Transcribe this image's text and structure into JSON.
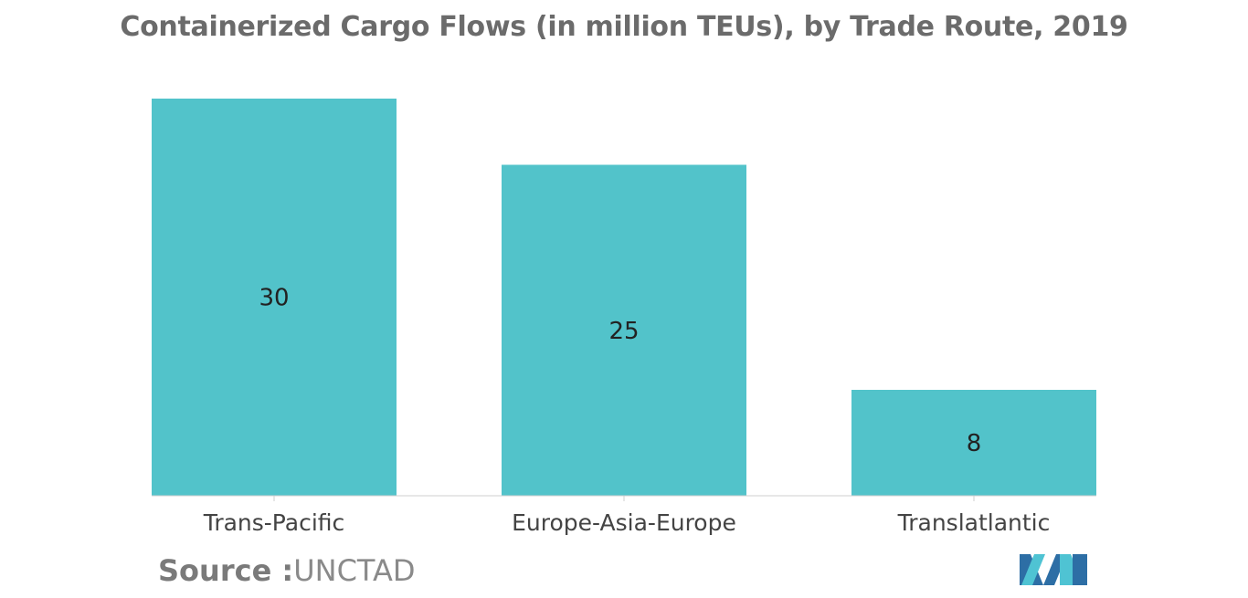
{
  "title": "Containerized Cargo Flows (in million TEUs), by Trade Route, 2019",
  "source": {
    "label": "Source :",
    "value": "UNCTAD"
  },
  "logo": {
    "icon": "mordor-intelligence-logo-icon"
  },
  "colors": {
    "bar": "#52c3ca",
    "axis": "#cfcfcf",
    "text": "#222222",
    "label": "#444444"
  },
  "chart_data": {
    "type": "bar",
    "title": "Containerized Cargo Flows (in million TEUs), by Trade Route, 2019",
    "categories": [
      "Trans-Pacific",
      "Europe-Asia-Europe",
      "Translatlantic"
    ],
    "values": [
      30,
      25,
      8
    ],
    "data_labels": [
      "30",
      "25",
      "8"
    ],
    "xlabel": "",
    "ylabel": "",
    "ylim": [
      0,
      30
    ],
    "grid": false,
    "legend": "none"
  }
}
